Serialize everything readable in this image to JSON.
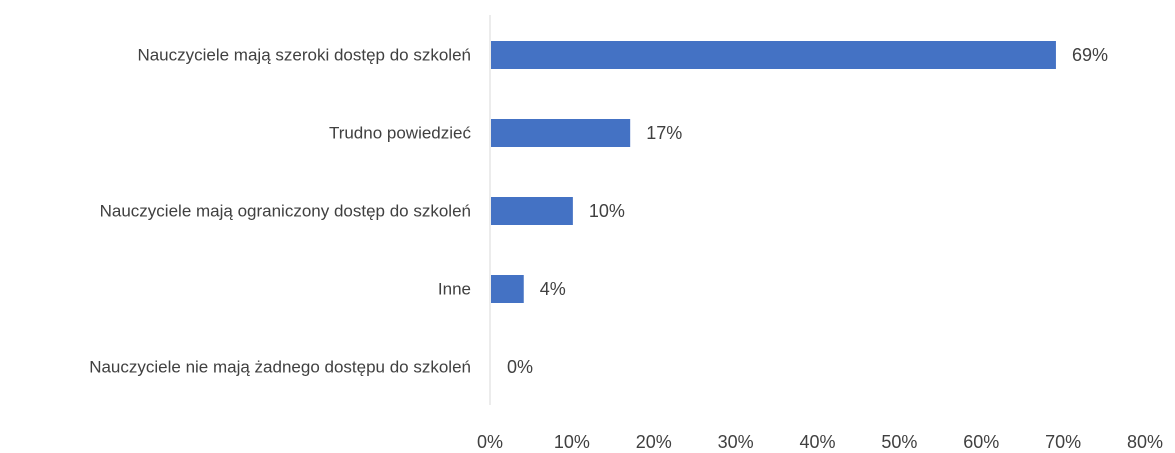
{
  "chart_data": {
    "type": "bar",
    "orientation": "horizontal",
    "title": "",
    "xlabel": "",
    "ylabel": "",
    "categories": [
      "Nauczyciele mają szeroki dostęp do szkoleń",
      "Trudno powiedzieć",
      "Nauczyciele mają ograniczony dostęp do szkoleń",
      "Inne",
      "Nauczyciele nie mają żadnego dostępu do szkoleń"
    ],
    "values": [
      69,
      17,
      10,
      4,
      0
    ],
    "data_labels": [
      "69%",
      "17%",
      "10%",
      "4%",
      "0%"
    ],
    "xlim": [
      0,
      80
    ],
    "x_ticks": [
      0,
      10,
      20,
      30,
      40,
      50,
      60,
      70,
      80
    ],
    "x_tick_labels": [
      "0%",
      "10%",
      "20%",
      "30%",
      "40%",
      "50%",
      "60%",
      "70%",
      "80%"
    ],
    "grid": false,
    "legend": "none",
    "bar_color": "#4472C4",
    "axis_color": "#D9D9D9",
    "text_color": "#404040"
  }
}
